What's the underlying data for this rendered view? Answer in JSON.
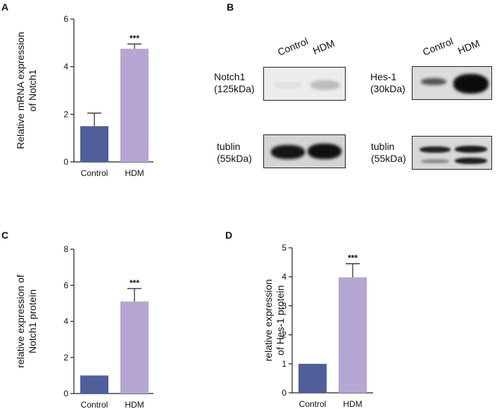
{
  "panels": {
    "a": {
      "letter": "A"
    },
    "b": {
      "letter": "B"
    },
    "c": {
      "letter": "C"
    },
    "d": {
      "letter": "D"
    }
  },
  "chart_data": [
    {
      "id": "A",
      "type": "bar",
      "categories": [
        "Control",
        "HDM"
      ],
      "values": [
        1.5,
        4.75
      ],
      "errors": [
        0.55,
        0.2
      ],
      "significance": [
        "",
        "***"
      ],
      "ylabel_lines": [
        "Relative mRNA expression",
        "of Notch1"
      ],
      "ylim": [
        0,
        6
      ],
      "yticks": [
        0,
        2,
        4,
        6
      ],
      "colors": [
        "#4f5f9c",
        "#b5a6d4"
      ]
    },
    {
      "id": "C",
      "type": "bar",
      "categories": [
        "Control",
        "HDM"
      ],
      "values": [
        1.0,
        5.1
      ],
      "errors": [
        0,
        0.72
      ],
      "significance": [
        "",
        "***"
      ],
      "ylabel_lines": [
        "relative expression of",
        "Notch1 protein"
      ],
      "ylim": [
        0,
        8
      ],
      "yticks": [
        0,
        2,
        4,
        6,
        8
      ],
      "colors": [
        "#4f5f9c",
        "#b5a6d4"
      ]
    },
    {
      "id": "D",
      "type": "bar",
      "categories": [
        "Control",
        "HDM"
      ],
      "values": [
        1.0,
        3.98
      ],
      "errors": [
        0,
        0.47
      ],
      "significance": [
        "",
        "***"
      ],
      "ylabel_lines": [
        "relative expression",
        "of Hes-1 protein"
      ],
      "ylim": [
        0,
        5
      ],
      "yticks": [
        0,
        1,
        2,
        3,
        4,
        5
      ],
      "colors": [
        "#4f5f9c",
        "#b5a6d4"
      ]
    }
  ],
  "western_blots": {
    "lanes": [
      "Control",
      "HDM"
    ],
    "notch1": {
      "label": "Notch1",
      "size": "(125kDa)"
    },
    "tublin_left": {
      "label": "tublin",
      "size": "(55kDa)"
    },
    "hes1": {
      "label": "Hes-1",
      "size": "(30kDa)"
    },
    "tublin_right": {
      "label": "tublin",
      "size": "(55kDa)"
    }
  }
}
